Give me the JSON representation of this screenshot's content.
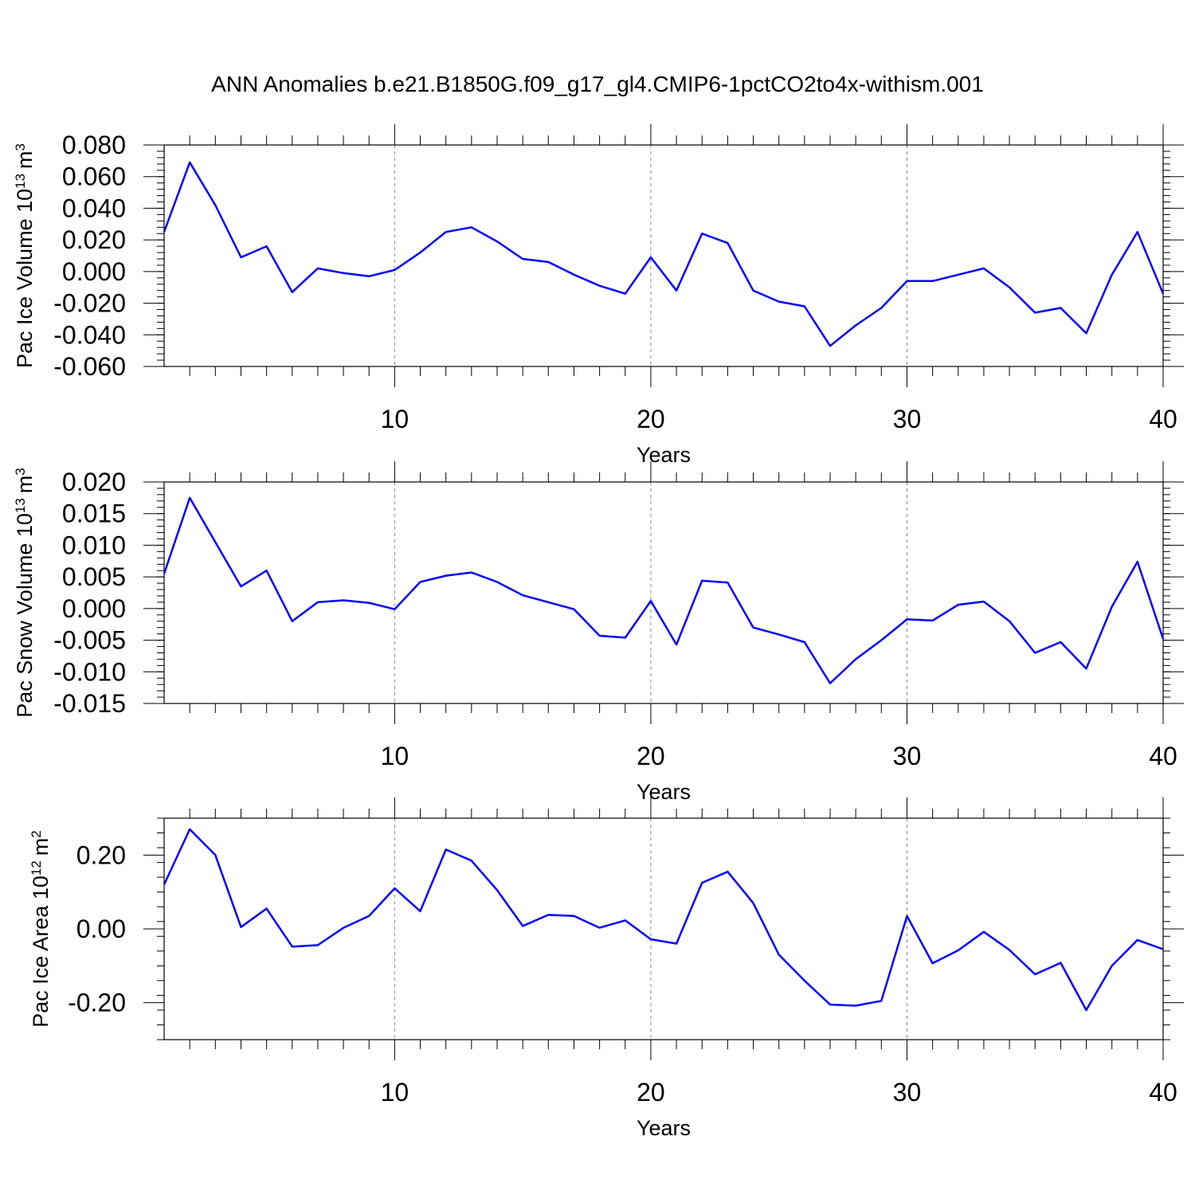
{
  "title": "ANN Anomalies b.e21.B1850G.f09_g17_gl4.CMIP6-1pctCO2to4x-withism.001",
  "colors": {
    "line": "#0000ff",
    "axis": "#000000",
    "grid": "#888888"
  },
  "chart_data": [
    {
      "type": "line",
      "ylabel": "Pac Ice Volume 10",
      "ylabel_exp": "13",
      "ylabel_unit": "m",
      "ylabel_unit_exp": "3",
      "xlabel": "Years",
      "xlim": [
        1,
        40
      ],
      "ylim": [
        -0.06,
        0.08
      ],
      "ytick_values": [
        -0.06,
        -0.04,
        -0.02,
        0.0,
        0.02,
        0.04,
        0.06,
        0.08
      ],
      "ytick_labels": [
        "-0.060",
        "-0.040",
        "-0.020",
        "0.000",
        "0.020",
        "0.040",
        "0.060",
        "0.080"
      ],
      "xtick_values": [
        10,
        20,
        30,
        40
      ],
      "xtick_labels": [
        "10",
        "20",
        "30",
        "40"
      ],
      "grid_x": [
        10,
        20,
        30
      ],
      "x": [
        1,
        2,
        3,
        4,
        5,
        6,
        7,
        8,
        9,
        10,
        11,
        12,
        13,
        14,
        15,
        16,
        17,
        18,
        19,
        20,
        21,
        22,
        23,
        24,
        25,
        26,
        27,
        28,
        29,
        30,
        31,
        32,
        33,
        34,
        35,
        36,
        37,
        38,
        39,
        40
      ],
      "y": [
        0.025,
        0.069,
        0.042,
        0.009,
        0.016,
        -0.013,
        0.002,
        -0.001,
        -0.003,
        0.001,
        0.012,
        0.025,
        0.028,
        0.019,
        0.008,
        0.006,
        -0.002,
        -0.009,
        -0.014,
        0.009,
        -0.012,
        0.024,
        0.018,
        -0.012,
        -0.019,
        -0.022,
        -0.047,
        -0.034,
        -0.023,
        -0.006,
        -0.006,
        -0.002,
        0.002,
        -0.01,
        -0.026,
        -0.023,
        -0.039,
        -0.002,
        0.025,
        -0.014
      ]
    },
    {
      "type": "line",
      "ylabel": "Pac Snow Volume 10",
      "ylabel_exp": "13",
      "ylabel_unit": "m",
      "ylabel_unit_exp": "3",
      "xlabel": "Years",
      "xlim": [
        1,
        40
      ],
      "ylim": [
        -0.015,
        0.02
      ],
      "ytick_values": [
        -0.015,
        -0.01,
        -0.005,
        0.0,
        0.005,
        0.01,
        0.015,
        0.02
      ],
      "ytick_labels": [
        "-0.015",
        "-0.010",
        "-0.005",
        "0.000",
        "0.005",
        "0.010",
        "0.015",
        "0.020"
      ],
      "xtick_values": [
        10,
        20,
        30,
        40
      ],
      "xtick_labels": [
        "10",
        "20",
        "30",
        "40"
      ],
      "grid_x": [
        10,
        20,
        30
      ],
      "x": [
        1,
        2,
        3,
        4,
        5,
        6,
        7,
        8,
        9,
        10,
        11,
        12,
        13,
        14,
        15,
        16,
        17,
        18,
        19,
        20,
        21,
        22,
        23,
        24,
        25,
        26,
        27,
        28,
        29,
        30,
        31,
        32,
        33,
        34,
        35,
        36,
        37,
        38,
        39,
        40
      ],
      "y": [
        0.0055,
        0.0175,
        0.0105,
        0.0035,
        0.006,
        -0.002,
        0.001,
        0.0013,
        0.0009,
        -0.0001,
        0.0042,
        0.0052,
        0.0057,
        0.0042,
        0.0021,
        0.001,
        -0.0001,
        -0.0043,
        -0.0046,
        0.0012,
        -0.0057,
        0.0044,
        0.0041,
        -0.003,
        -0.0041,
        -0.0053,
        -0.0118,
        -0.008,
        -0.005,
        -0.0017,
        -0.0019,
        0.0006,
        0.0011,
        -0.002,
        -0.007,
        -0.0053,
        -0.0095,
        0.0003,
        0.0074,
        -0.0048
      ]
    },
    {
      "type": "line",
      "ylabel": "Pac Ice Area 10",
      "ylabel_exp": "12",
      "ylabel_unit": "m",
      "ylabel_unit_exp": "2",
      "xlabel": "Years",
      "xlim": [
        1,
        40
      ],
      "ylim": [
        -0.3,
        0.3
      ],
      "ytick_values": [
        -0.2,
        0.0,
        0.2
      ],
      "ytick_labels": [
        "-0.20",
        "0.00",
        "0.20"
      ],
      "xtick_values": [
        10,
        20,
        30,
        40
      ],
      "xtick_labels": [
        "10",
        "20",
        "30",
        "40"
      ],
      "grid_x": [
        10,
        20,
        30
      ],
      "x": [
        1,
        2,
        3,
        4,
        5,
        6,
        7,
        8,
        9,
        10,
        11,
        12,
        13,
        14,
        15,
        16,
        17,
        18,
        19,
        20,
        21,
        22,
        23,
        24,
        25,
        26,
        27,
        28,
        29,
        30,
        31,
        32,
        33,
        34,
        35,
        36,
        37,
        38,
        39,
        40
      ],
      "y": [
        0.12,
        0.27,
        0.2,
        0.005,
        0.055,
        -0.048,
        -0.044,
        0.003,
        0.035,
        0.11,
        0.048,
        0.215,
        0.185,
        0.105,
        0.008,
        0.038,
        0.035,
        0.003,
        0.023,
        -0.028,
        -0.04,
        0.125,
        0.155,
        0.07,
        -0.07,
        -0.14,
        -0.205,
        -0.208,
        -0.195,
        0.035,
        -0.093,
        -0.058,
        -0.008,
        -0.057,
        -0.123,
        -0.092,
        -0.22,
        -0.1,
        -0.03,
        -0.055
      ]
    }
  ]
}
